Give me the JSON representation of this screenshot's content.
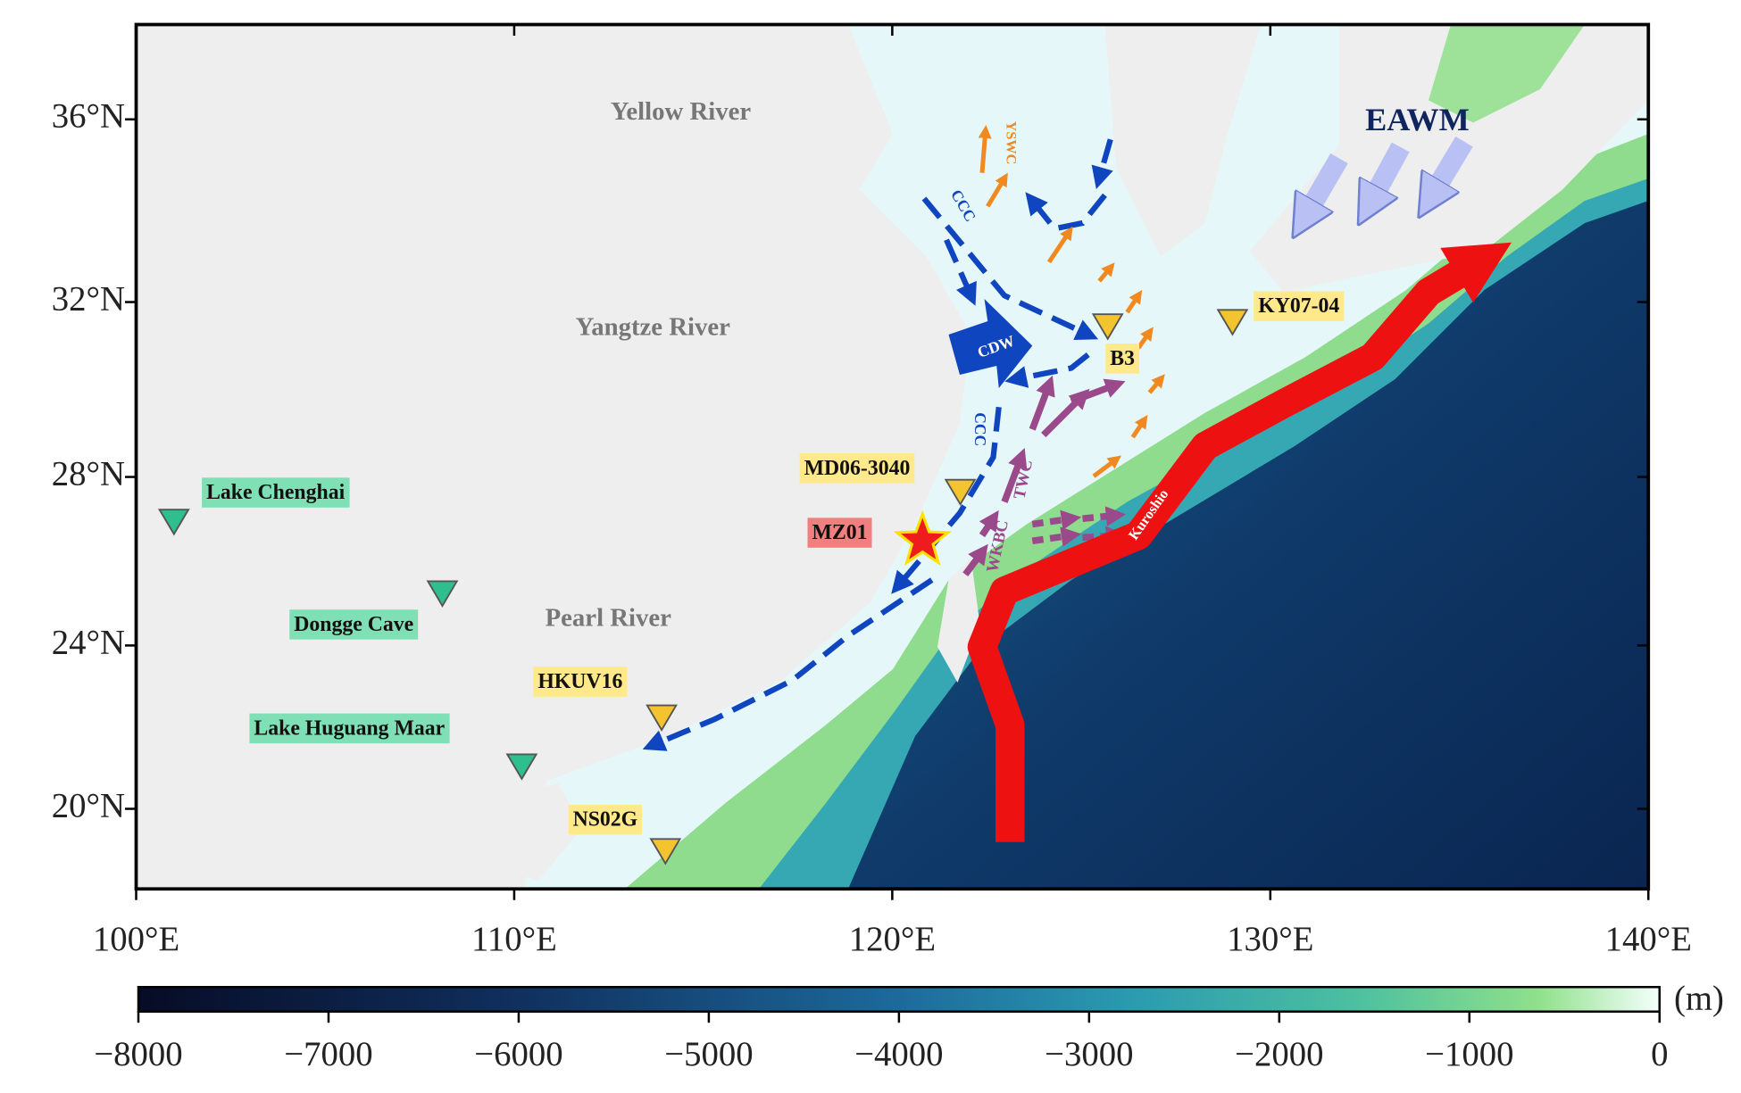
{
  "map": {
    "lon_range": [
      100,
      140
    ],
    "lat_range": [
      18,
      38
    ],
    "lon_ticks": [
      {
        "value": 100,
        "label": "100°E"
      },
      {
        "value": 110,
        "label": "110°E"
      },
      {
        "value": 120,
        "label": "120°E"
      },
      {
        "value": 130,
        "label": "130°E"
      },
      {
        "value": 140,
        "label": "140°E"
      }
    ],
    "lat_ticks": [
      {
        "value": 20,
        "label": "20°N"
      },
      {
        "value": 24,
        "label": "24°N"
      },
      {
        "value": 28,
        "label": "28°N"
      },
      {
        "value": 32,
        "label": "32°N"
      },
      {
        "value": 36,
        "label": "36°N"
      }
    ],
    "rivers": [
      "Yellow River",
      "Yangtze River",
      "Pearl River"
    ],
    "currents": [
      "YSWC",
      "CCC",
      "CDW",
      "CCC",
      "WKBC",
      "TWC",
      "Kuroshio",
      "EAWM"
    ],
    "sites": [
      {
        "name": "Lake Chenghai",
        "lon": 101.0,
        "lat": 27.0,
        "color": "#2fbf8f",
        "label_color": "#7fe0b6"
      },
      {
        "name": "Dongge Cave",
        "lon": 108.1,
        "lat": 25.3,
        "color": "#2fbf8f",
        "label_color": "#7fe0b6"
      },
      {
        "name": "Lake Huguang Maar",
        "lon": 110.2,
        "lat": 21.1,
        "color": "#2fbf8f",
        "label_color": "#7fe0b6"
      },
      {
        "name": "HKUV16",
        "lon": 113.9,
        "lat": 22.3,
        "color": "#f4c430",
        "label_color": "#ffe98a"
      },
      {
        "name": "NS02G",
        "lon": 114.0,
        "lat": 19.0,
        "color": "#f4c430",
        "label_color": "#ffe98a"
      },
      {
        "name": "MD06-3040",
        "lon": 121.8,
        "lat": 27.7,
        "color": "#f4c430",
        "label_color": "#ffe98a"
      },
      {
        "name": "B3",
        "lon": 125.7,
        "lat": 31.5,
        "color": "#f4c430",
        "label_color": "#ffe98a"
      },
      {
        "name": "KY07-04",
        "lon": 129.0,
        "lat": 31.6,
        "color": "#f4c430",
        "label_color": "#ffe98a"
      }
    ],
    "core": {
      "name": "MZ01",
      "lon": 120.8,
      "lat": 26.5,
      "color": "#ee1c1c",
      "label_color": "#f08080"
    }
  },
  "colorbar": {
    "range": [
      -8000,
      0
    ],
    "ticks": [
      {
        "value": -8000,
        "label": "−8000"
      },
      {
        "value": -7000,
        "label": "−7000"
      },
      {
        "value": -6000,
        "label": "−6000"
      },
      {
        "value": -5000,
        "label": "−5000"
      },
      {
        "value": -4000,
        "label": "−4000"
      },
      {
        "value": -3000,
        "label": "−3000"
      },
      {
        "value": -2000,
        "label": "−2000"
      },
      {
        "value": -1000,
        "label": "−1000"
      },
      0
    ],
    "unit": "(m)"
  }
}
